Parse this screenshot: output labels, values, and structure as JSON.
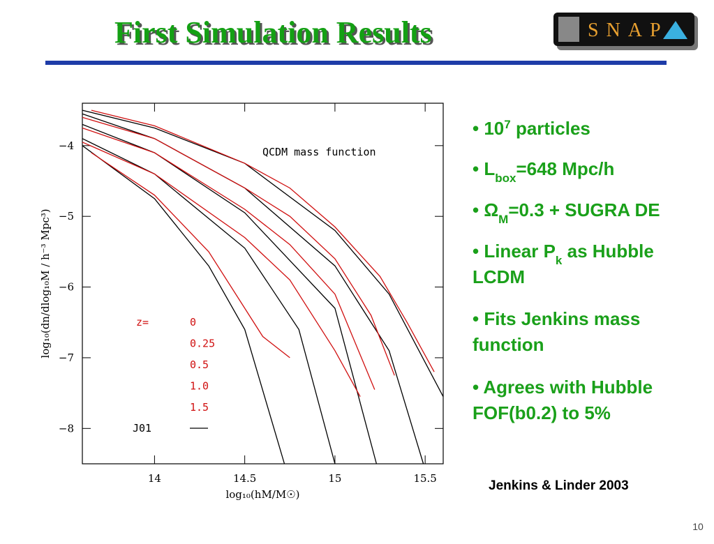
{
  "header": {
    "title": "First Simulation Results",
    "logo": "SNAP"
  },
  "chart_data": {
    "type": "line",
    "annotation": "QCDM mass function",
    "xlabel": "log₁₀(hM/M☉)",
    "ylabel": "log₁₀(dn/dlog₁₀M / h⁻³ Mpc³)",
    "xlim": [
      13.6,
      15.6
    ],
    "ylim": [
      -8.5,
      -3.4
    ],
    "xticks": [
      14,
      14.5,
      15,
      15.5
    ],
    "yticks": [
      {
        "value": -4,
        "label": "−4"
      },
      {
        "value": -5,
        "label": "−5"
      },
      {
        "value": -6,
        "label": "−6"
      },
      {
        "value": -7,
        "label": "−7"
      },
      {
        "value": -8,
        "label": "−8"
      }
    ],
    "legend_title": "z=",
    "series": [
      {
        "name": "0",
        "color": "#d01010",
        "x": [
          13.65,
          14,
          14.5,
          14.75,
          15,
          15.25,
          15.4,
          15.55
        ],
        "values": [
          -3.5,
          -3.72,
          -4.25,
          -4.6,
          -5.15,
          -5.85,
          -6.5,
          -7.2
        ]
      },
      {
        "name": "0.25",
        "color": "#d01010",
        "x": [
          13.6,
          14,
          14.5,
          14.75,
          15,
          15.2,
          15.33
        ],
        "values": [
          -3.6,
          -3.9,
          -4.6,
          -5.0,
          -5.6,
          -6.4,
          -7.25
        ]
      },
      {
        "name": "0.5",
        "color": "#d01010",
        "x": [
          13.6,
          14,
          14.5,
          14.75,
          15,
          15.22
        ],
        "values": [
          -3.75,
          -4.1,
          -4.9,
          -5.4,
          -6.1,
          -7.45
        ]
      },
      {
        "name": "1.0",
        "color": "#d01010",
        "x": [
          13.6,
          14,
          14.5,
          14.75,
          15,
          15.14
        ],
        "values": [
          -3.95,
          -4.4,
          -5.3,
          -5.9,
          -6.9,
          -7.55
        ]
      },
      {
        "name": "1.5",
        "color": "#d01010",
        "x": [
          13.65,
          14,
          14.3,
          14.5,
          14.6,
          14.75
        ],
        "values": [
          -4.1,
          -4.7,
          -5.5,
          -6.3,
          -6.7,
          -7.0
        ]
      }
    ],
    "fit_label": "J01",
    "fit_color": "#000000",
    "fit_series": [
      {
        "x": [
          13.6,
          14,
          14.5,
          15,
          15.3,
          15.6
        ],
        "values": [
          -3.5,
          -3.75,
          -4.25,
          -5.2,
          -6.1,
          -7.55
        ]
      },
      {
        "x": [
          13.6,
          14,
          14.5,
          15,
          15.3,
          15.49
        ],
        "values": [
          -3.55,
          -3.9,
          -4.6,
          -5.7,
          -6.9,
          -8.5
        ]
      },
      {
        "x": [
          13.6,
          14,
          14.5,
          15,
          15.23
        ],
        "values": [
          -3.7,
          -4.1,
          -4.95,
          -6.3,
          -8.5
        ]
      },
      {
        "x": [
          13.6,
          14,
          14.5,
          14.8,
          15.0
        ],
        "values": [
          -3.9,
          -4.4,
          -5.45,
          -6.6,
          -8.5
        ]
      },
      {
        "x": [
          13.6,
          14,
          14.3,
          14.5,
          14.72
        ],
        "values": [
          -4.0,
          -4.75,
          -5.7,
          -6.6,
          -8.5
        ]
      }
    ]
  },
  "bullets": [
    [
      [
        {
          "text": "• 10"
        },
        {
          "sup": "7"
        },
        {
          "text": " particles"
        }
      ]
    ],
    [
      [
        {
          "text": "• L"
        },
        {
          "sub": "box"
        },
        {
          "text": "=648 Mpc/h"
        }
      ]
    ],
    [
      [
        {
          "text": "• Ω"
        },
        {
          "sub": "M"
        },
        {
          "text": "=0.3 + SUGRA DE"
        }
      ]
    ],
    [
      [
        {
          "text": "• Linear P"
        },
        {
          "sub": "k"
        },
        {
          "text": " as Hubble"
        }
      ],
      [
        {
          "text": "LCDM"
        }
      ]
    ],
    [
      [
        {
          "text": "• Fits Jenkins mass"
        }
      ],
      [
        {
          "text": "function"
        }
      ]
    ],
    [
      [
        {
          "text": "• Agrees with Hubble"
        }
      ],
      [
        {
          "text": "FOF(b0.2) to 5%"
        }
      ]
    ]
  ],
  "citation": "Jenkins & Linder 2003",
  "page_number": "10"
}
